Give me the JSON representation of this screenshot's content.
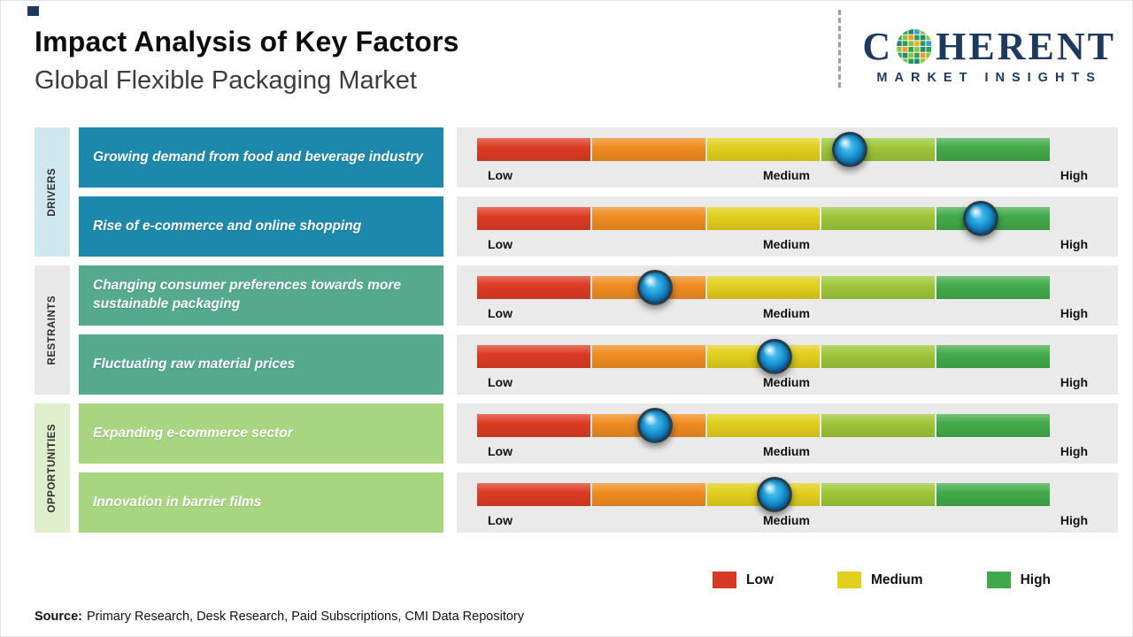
{
  "chart_data": {
    "type": "bar",
    "title": "Impact Analysis of Key Factors",
    "subtitle": "Global Flexible Packaging Market",
    "scale_labels": [
      "Low",
      "Medium",
      "High"
    ],
    "scale_range_pct": [
      0,
      100
    ],
    "segment_colors": [
      "#dd3b23",
      "#f08c21",
      "#e2cf1d",
      "#9fc63a",
      "#43ab4a"
    ],
    "groups": [
      {
        "label": "DRIVERS",
        "box_color": "#1c89ac",
        "sidebar_color": "#cfe8f0",
        "rows": [
          {
            "factor": "Growing demand from food and beverage industry",
            "impact_pct": 65,
            "impact_reading": "Medium-High"
          },
          {
            "factor": "Rise of e-commerce and online shopping",
            "impact_pct": 88,
            "impact_reading": "High"
          }
        ]
      },
      {
        "label": "RESTRAINTS",
        "box_color": "#55a98c",
        "sidebar_color": "#e8e8e8",
        "rows": [
          {
            "factor": "Changing consumer preferences towards more sustainable packaging",
            "impact_pct": 31,
            "impact_reading": "Low-Medium"
          },
          {
            "factor": "Fluctuating raw material prices",
            "impact_pct": 52,
            "impact_reading": "Medium"
          }
        ]
      },
      {
        "label": "OPPORTUNITIES",
        "box_color": "#a8d57f",
        "sidebar_color": "#dfeecb",
        "rows": [
          {
            "factor": "Expanding e-commerce sector",
            "impact_pct": 31,
            "impact_reading": "Low-Medium"
          },
          {
            "factor": "Innovation in barrier films",
            "impact_pct": 52,
            "impact_reading": "Medium"
          }
        ]
      }
    ],
    "legend": [
      {
        "label": "Low",
        "color": "#d63a23"
      },
      {
        "label": "Medium",
        "color": "#e2cf1d"
      },
      {
        "label": "High",
        "color": "#3fa94c"
      }
    ]
  },
  "logo": {
    "wordmark_prefix": "C",
    "wordmark_suffix": "HERENT",
    "tagline": "MARKET INSIGHTS",
    "brand_color": "#1d3a5e"
  },
  "source": {
    "label": "Source:",
    "text": "Primary Research, Desk Research, Paid Subscriptions, CMI Data Repository"
  }
}
